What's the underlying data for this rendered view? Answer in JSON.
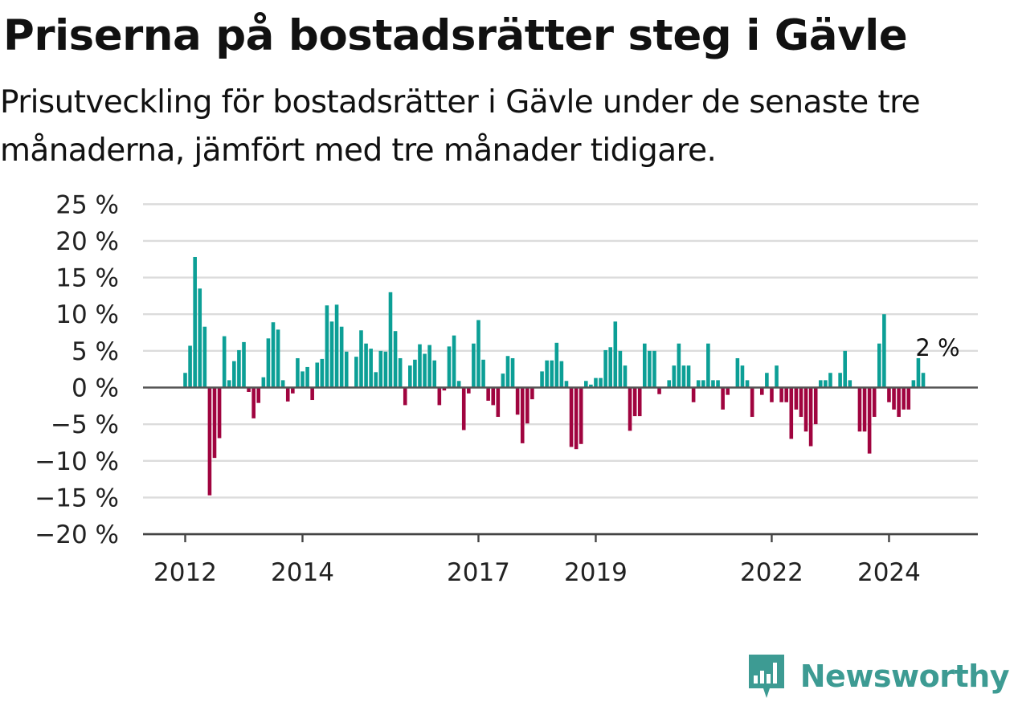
{
  "title": "Priserna på bostadsrätter steg i Gävle",
  "subtitle": "Prisutveckling för bostadsrätter i Gävle under de senaste tre månaderna, jämfört med tre månader tidigare.",
  "brand": {
    "name": "Newsworthy",
    "color": "#3d9b93"
  },
  "colors": {
    "positive": "#0c9f96",
    "negative": "#a0043f",
    "grid": "#dcdcdc",
    "axis": "#555555"
  },
  "chart_data": {
    "type": "bar",
    "x_start": "2012-01",
    "x_step": "month",
    "xlabel": "",
    "ylabel": "",
    "ylim": [
      -20,
      25
    ],
    "y_ticks": [
      25,
      20,
      15,
      10,
      5,
      0,
      -5,
      -10,
      -15,
      -20
    ],
    "y_tick_labels": [
      "25 %",
      "20 %",
      "15 %",
      "10 %",
      "5 %",
      "0 %",
      "−5 %",
      "−10 %",
      "−15 %",
      "−20 %"
    ],
    "x_tick_labels": [
      {
        "label": "2012",
        "month": "2012-01"
      },
      {
        "label": "2014",
        "month": "2014-01"
      },
      {
        "label": "2017",
        "month": "2017-01"
      },
      {
        "label": "2019",
        "month": "2019-01"
      },
      {
        "label": "2022",
        "month": "2022-01"
      },
      {
        "label": "2024",
        "month": "2024-01"
      }
    ],
    "grid": true,
    "annotation": "2 %",
    "values": [
      2,
      5.7,
      17.8,
      13.5,
      8.3,
      -14.7,
      -9.6,
      -6.9,
      7,
      1,
      3.6,
      5.1,
      6.2,
      -0.6,
      -4.2,
      -2.1,
      1.4,
      6.7,
      8.9,
      7.9,
      1,
      -1.9,
      -0.8,
      4,
      2.2,
      2.8,
      -1.7,
      3.4,
      3.9,
      11.2,
      9,
      11.3,
      8.3,
      4.9,
      null,
      4.2,
      7.8,
      6,
      5.3,
      2.1,
      5,
      4.9,
      13,
      7.7,
      4,
      -2.4,
      3,
      3.8,
      5.9,
      4.6,
      5.8,
      3.7,
      -2.4,
      -0.4,
      5.6,
      7.1,
      0.9,
      -5.8,
      -0.8,
      6,
      9.2,
      3.8,
      -1.8,
      -2.4,
      -4,
      1.9,
      4.3,
      4,
      -3.7,
      -7.6,
      -4.9,
      -1.6,
      null,
      2.2,
      3.7,
      3.7,
      6.1,
      3.6,
      0.9,
      -8.1,
      -8.4,
      -7.7,
      0.9,
      0.4,
      1.3,
      1.3,
      5.1,
      5.5,
      9,
      5,
      3,
      -5.9,
      -3.9,
      -3.9,
      6,
      5,
      5,
      -0.9,
      0,
      1,
      3,
      6,
      3,
      3,
      -2,
      1,
      1,
      6,
      1,
      1,
      -3,
      -1,
      0,
      4,
      3,
      1,
      -4,
      0,
      -1,
      2,
      -2,
      3,
      -2,
      -2,
      -7,
      -3,
      -4,
      -6,
      -8,
      -5,
      1,
      1,
      2,
      0,
      2,
      5,
      1,
      0,
      -6,
      -6,
      -9,
      -4,
      6,
      10,
      -2,
      -3,
      -4,
      -3,
      -3,
      1,
      4,
      2
    ]
  }
}
